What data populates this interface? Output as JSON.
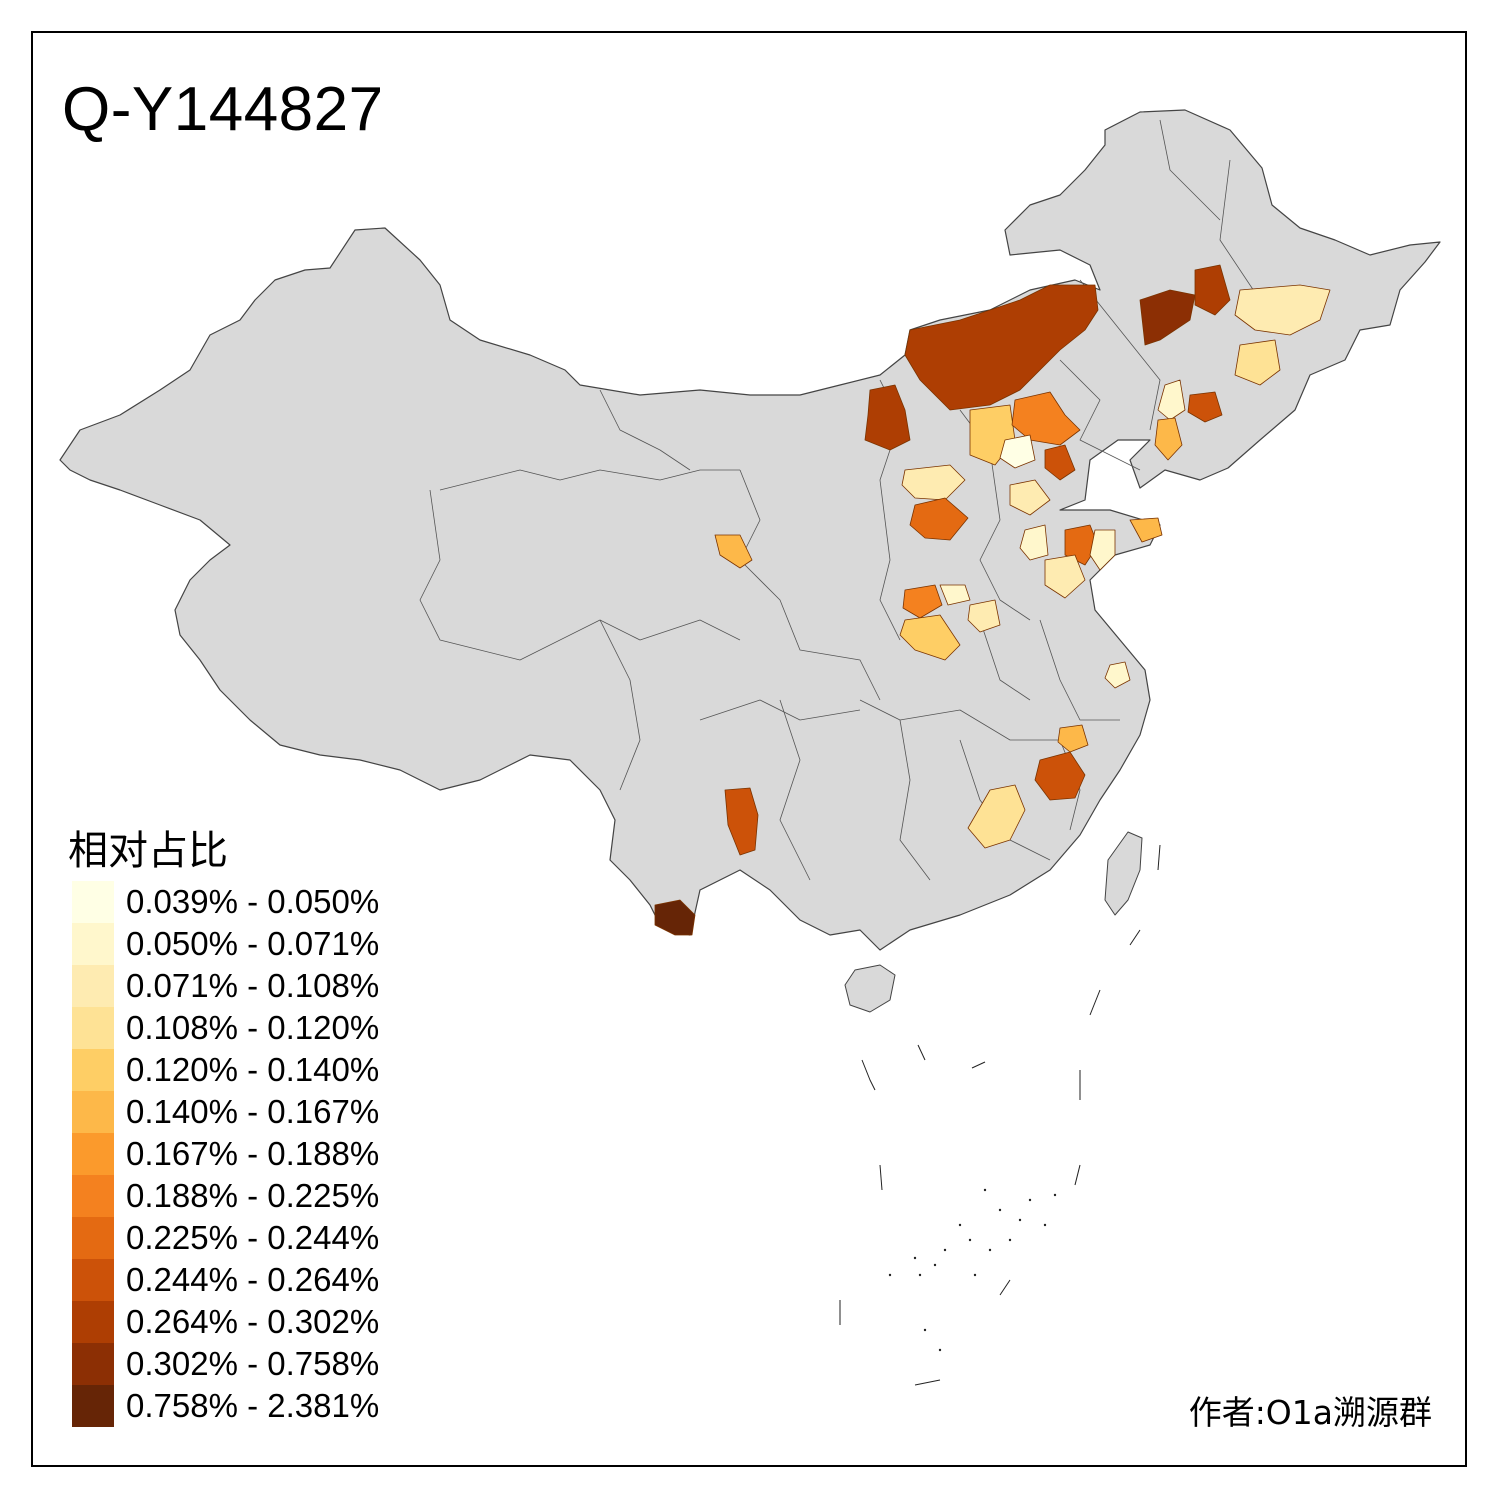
{
  "title": "Q-Y144827",
  "legend": {
    "title": "相对占比",
    "classes": [
      {
        "label": "0.039% - 0.050%",
        "color": "#FFFFE5"
      },
      {
        "label": "0.050% - 0.071%",
        "color": "#FFF7CC"
      },
      {
        "label": "0.071% - 0.108%",
        "color": "#FEEBB1"
      },
      {
        "label": "0.108% - 0.120%",
        "color": "#FEE295"
      },
      {
        "label": "0.120% - 0.140%",
        "color": "#FECE65"
      },
      {
        "label": "0.140% - 0.167%",
        "color": "#FDB849"
      },
      {
        "label": "0.167% - 0.188%",
        "color": "#FB9A2C"
      },
      {
        "label": "0.188% - 0.225%",
        "color": "#F4811F"
      },
      {
        "label": "0.225% - 0.244%",
        "color": "#E46A12"
      },
      {
        "label": "0.244% - 0.264%",
        "color": "#CC5209"
      },
      {
        "label": "0.264% - 0.302%",
        "color": "#AE3E03"
      },
      {
        "label": "0.302% - 0.758%",
        "color": "#8C2F04"
      },
      {
        "label": "0.758% - 2.381%",
        "color": "#662506"
      }
    ]
  },
  "author": "作者:O1a溯源群",
  "map": {
    "base_color": "#D9D9D9",
    "border_color": "#555555"
  }
}
